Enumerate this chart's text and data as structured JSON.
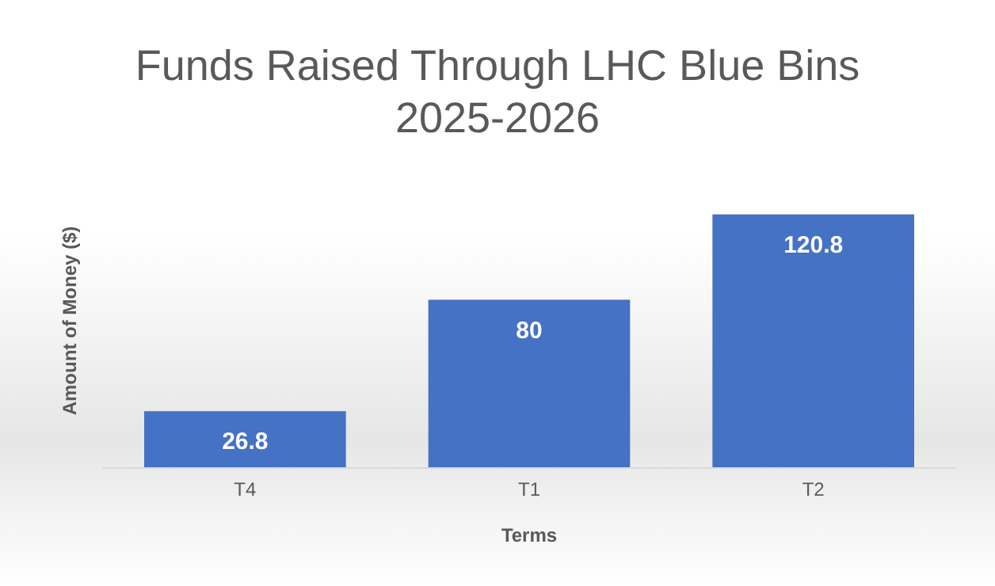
{
  "chart_data": {
    "type": "bar",
    "title": "Funds Raised Through LHC Blue Bins\n2025-2026",
    "xlabel": "Terms",
    "ylabel": "Amount of Money ($)",
    "categories": [
      "T4",
      "T1",
      "T2"
    ],
    "series": [
      {
        "color": "#4472c4",
        "values": [
          26.8,
          80,
          120.8
        ]
      }
    ],
    "data_labels": true
  }
}
